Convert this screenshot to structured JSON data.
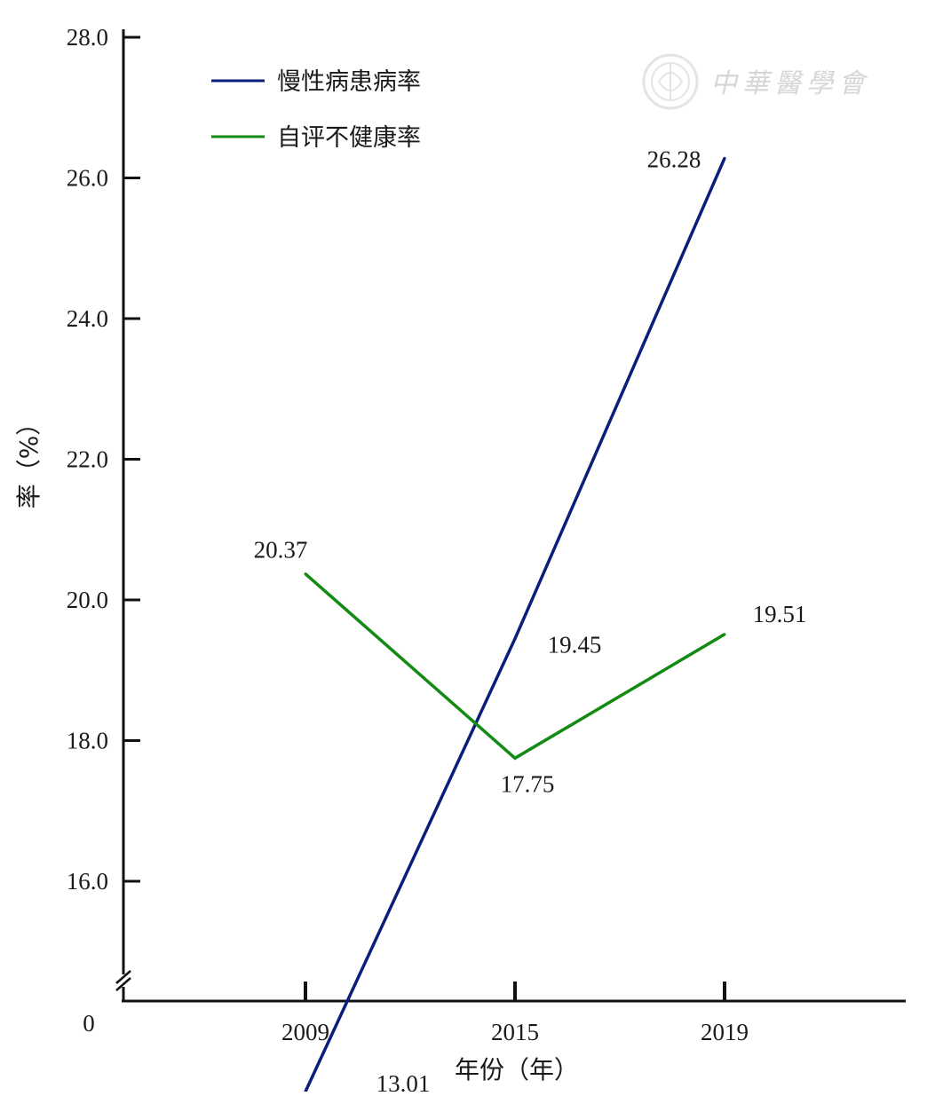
{
  "chart_data": {
    "type": "line",
    "x": [
      "2009",
      "2015",
      "2019"
    ],
    "series": [
      {
        "name": "慢性病患病率",
        "color": "#0b1f7a",
        "values": [
          13.01,
          19.45,
          26.28
        ],
        "point_labels": [
          "13.01",
          "19.45",
          "26.28"
        ]
      },
      {
        "name": "自评不健康率",
        "color": "#138a12",
        "values": [
          20.37,
          17.75,
          19.51
        ],
        "point_labels": [
          "20.37",
          "17.75",
          "19.51"
        ]
      }
    ],
    "xlabel": "年份（年）",
    "ylabel": "率（%）",
    "yticks": [
      "16.0",
      "18.0",
      "20.0",
      "22.0",
      "24.0",
      "26.0",
      "28.0"
    ],
    "ytick_values": [
      16,
      18,
      20,
      22,
      24,
      26,
      28
    ],
    "origin_label": "0",
    "ylim": [
      15,
      28
    ],
    "axis_break": true,
    "legend_position": "top-left",
    "grid": false
  },
  "watermark": {
    "text": "中華醫學會",
    "icon": "seal-emblem-icon"
  }
}
